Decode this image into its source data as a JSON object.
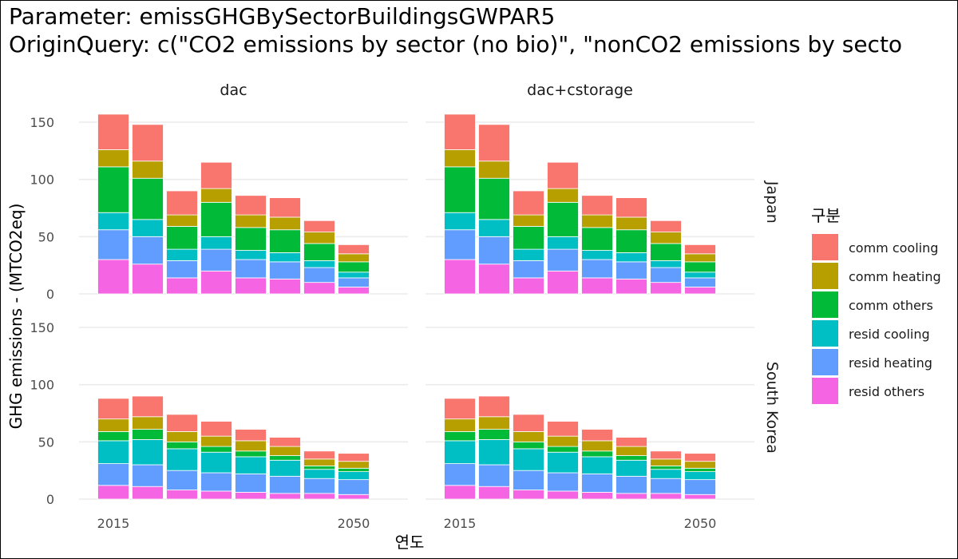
{
  "title_lines": [
    "Parameter: emissGHGBySectorBuildingsGWPAR5",
    "OriginQuery: c(\"CO2 emissions by sector (no bio)\", \"nonCO2 emissions by secto"
  ],
  "chart_data": {
    "type": "bar",
    "stacked": true,
    "facet_columns": [
      "dac",
      "dac+cstorage"
    ],
    "facet_rows": [
      "Japan",
      "South Korea"
    ],
    "xlabel": "연도",
    "ylabel": "GHG emissions - (MTCO2eq)",
    "x_tick_labels": [
      "2015",
      "2050"
    ],
    "x_ticks": [
      2015,
      2050
    ],
    "x": [
      2015,
      2020,
      2025,
      2030,
      2035,
      2040,
      2045,
      2050
    ],
    "ylim": [
      0,
      160
    ],
    "y_ticks": [
      0,
      50,
      100,
      150
    ],
    "grid": true,
    "legend_title": "구분",
    "legend_position": "right",
    "series_colors": {
      "comm cooling": "#F8766D",
      "comm heating": "#B79F00",
      "comm others": "#00BA38",
      "resid cooling": "#00BFC4",
      "resid heating": "#619CFF",
      "resid others": "#F564E3"
    },
    "stack_order_bottom_to_top": [
      "resid others",
      "resid heating",
      "resid cooling",
      "comm others",
      "comm heating",
      "comm cooling"
    ],
    "legend_order": [
      "comm cooling",
      "comm heating",
      "comm others",
      "resid cooling",
      "resid heating",
      "resid others"
    ],
    "panels": [
      {
        "column": "dac",
        "row": "Japan",
        "series": [
          {
            "name": "resid others",
            "values": [
              30,
              26,
              14,
              20,
              14,
              13,
              10,
              6
            ]
          },
          {
            "name": "resid heating",
            "values": [
              26,
              24,
              15,
              19,
              16,
              15,
              13,
              8
            ]
          },
          {
            "name": "resid cooling",
            "values": [
              15,
              15,
              10,
              11,
              8,
              8,
              6,
              5
            ]
          },
          {
            "name": "comm others",
            "values": [
              40,
              36,
              20,
              30,
              20,
              20,
              15,
              9
            ]
          },
          {
            "name": "comm heating",
            "values": [
              15,
              15,
              10,
              12,
              11,
              11,
              10,
              7
            ]
          },
          {
            "name": "comm cooling",
            "values": [
              31,
              32,
              21,
              23,
              17,
              17,
              10,
              8
            ]
          }
        ]
      },
      {
        "column": "dac+cstorage",
        "row": "Japan",
        "series": [
          {
            "name": "resid others",
            "values": [
              30,
              26,
              14,
              20,
              14,
              13,
              10,
              6
            ]
          },
          {
            "name": "resid heating",
            "values": [
              26,
              24,
              15,
              19,
              16,
              15,
              13,
              8
            ]
          },
          {
            "name": "resid cooling",
            "values": [
              15,
              15,
              10,
              11,
              8,
              8,
              6,
              5
            ]
          },
          {
            "name": "comm others",
            "values": [
              40,
              36,
              20,
              30,
              20,
              20,
              15,
              9
            ]
          },
          {
            "name": "comm heating",
            "values": [
              15,
              15,
              10,
              12,
              11,
              11,
              10,
              7
            ]
          },
          {
            "name": "comm cooling",
            "values": [
              31,
              32,
              21,
              23,
              17,
              17,
              10,
              8
            ]
          }
        ]
      },
      {
        "column": "dac",
        "row": "South Korea",
        "series": [
          {
            "name": "resid others",
            "values": [
              12,
              11,
              8,
              7,
              6,
              5,
              5,
              4
            ]
          },
          {
            "name": "resid heating",
            "values": [
              19,
              19,
              17,
              16,
              16,
              15,
              13,
              13
            ]
          },
          {
            "name": "resid cooling",
            "values": [
              20,
              22,
              19,
              18,
              15,
              14,
              8,
              7
            ]
          },
          {
            "name": "comm others",
            "values": [
              8,
              9,
              6,
              5,
              5,
              4,
              3,
              3
            ]
          },
          {
            "name": "comm heating",
            "values": [
              11,
              11,
              9,
              9,
              9,
              8,
              6,
              6
            ]
          },
          {
            "name": "comm cooling",
            "values": [
              18,
              18,
              15,
              13,
              10,
              8,
              7,
              7
            ]
          }
        ]
      },
      {
        "column": "dac+cstorage",
        "row": "South Korea",
        "series": [
          {
            "name": "resid others",
            "values": [
              12,
              11,
              8,
              7,
              6,
              5,
              5,
              4
            ]
          },
          {
            "name": "resid heating",
            "values": [
              19,
              19,
              17,
              16,
              16,
              15,
              13,
              13
            ]
          },
          {
            "name": "resid cooling",
            "values": [
              20,
              22,
              19,
              18,
              15,
              14,
              8,
              7
            ]
          },
          {
            "name": "comm others",
            "values": [
              8,
              9,
              6,
              5,
              5,
              4,
              3,
              3
            ]
          },
          {
            "name": "comm heating",
            "values": [
              11,
              11,
              9,
              9,
              9,
              8,
              6,
              6
            ]
          },
          {
            "name": "comm cooling",
            "values": [
              18,
              18,
              15,
              13,
              10,
              8,
              7,
              7
            ]
          }
        ]
      }
    ]
  }
}
